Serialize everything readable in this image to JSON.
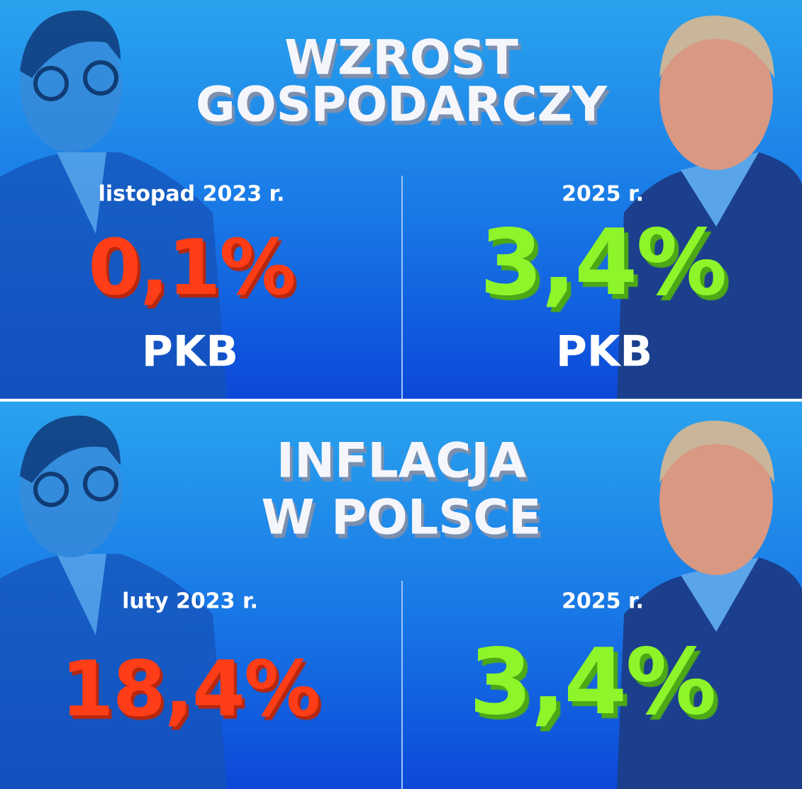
{
  "panels": [
    {
      "title": [
        "WZROST",
        "GOSPODARCZY"
      ],
      "left": {
        "label": "listopad 2023 r.",
        "value": "0,1%",
        "unit": "PKB"
      },
      "right": {
        "label": "2025 r.",
        "value": "3,4%",
        "unit": "PKB"
      }
    },
    {
      "title": [
        "INFLACJA",
        "W POLSCE"
      ],
      "left": {
        "label": "luty 2023 r.",
        "value": "18,4%"
      },
      "right": {
        "label": "2025 r.",
        "value": "3,4%"
      }
    }
  ]
}
